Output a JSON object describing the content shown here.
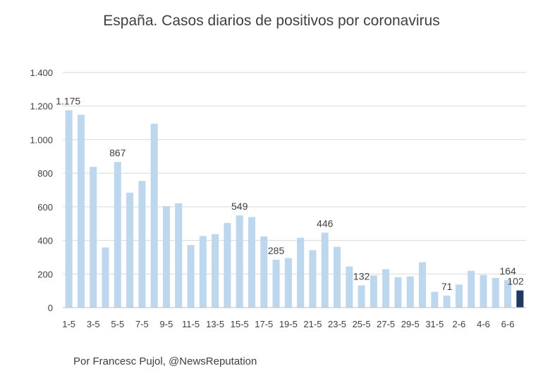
{
  "chart_data": {
    "type": "bar",
    "title": "España. Casos diarios de positivos por coronavirus",
    "xlabel": "",
    "ylabel": "",
    "ylim": [
      0,
      1400
    ],
    "yticks": [
      0,
      200,
      400,
      600,
      800,
      1000,
      1200,
      1400
    ],
    "ytick_labels": [
      "0",
      "200",
      "400",
      "600",
      "800",
      "1.000",
      "1.200",
      "1.400"
    ],
    "categories": [
      "1-5",
      "2-5",
      "3-5",
      "4-5",
      "5-5",
      "6-5",
      "7-5",
      "8-5",
      "9-5",
      "10-5",
      "11-5",
      "12-5",
      "13-5",
      "14-5",
      "15-5",
      "16-5",
      "17-5",
      "18-5",
      "19-5",
      "20-5",
      "21-5",
      "22-5",
      "23-5",
      "24-5",
      "25-5",
      "26-5",
      "27-5",
      "28-5",
      "29-5",
      "30-5",
      "31-5",
      "1-6",
      "2-6",
      "3-6",
      "4-6",
      "5-6",
      "6-6",
      "7-6"
    ],
    "visible_xtick_labels": [
      "1-5",
      "3-5",
      "5-5",
      "7-5",
      "9-5",
      "11-5",
      "13-5",
      "15-5",
      "17-5",
      "19-5",
      "21-5",
      "23-5",
      "25-5",
      "27-5",
      "29-5",
      "31-5",
      "2-6",
      "4-6",
      "6-6"
    ],
    "values": [
      1175,
      1148,
      838,
      358,
      867,
      684,
      754,
      1095,
      604,
      621,
      372,
      426,
      437,
      504,
      549,
      539,
      424,
      285,
      295,
      416,
      342,
      446,
      362,
      245,
      132,
      191,
      229,
      181,
      186,
      270,
      94,
      71,
      137,
      219,
      194,
      176,
      164,
      102
    ],
    "data_labels": [
      {
        "category": "1-5",
        "text": "1.175"
      },
      {
        "category": "5-5",
        "text": "867"
      },
      {
        "category": "15-5",
        "text": "549"
      },
      {
        "category": "18-5",
        "text": "285"
      },
      {
        "category": "22-5",
        "text": "446"
      },
      {
        "category": "25-5",
        "text": "132"
      },
      {
        "category": "1-6",
        "text": "71"
      },
      {
        "category": "6-6",
        "text": "164"
      },
      {
        "category": "7-6",
        "text": "102"
      }
    ],
    "grid": true,
    "legend": "none",
    "colors": {
      "bar": "#bdd7ee",
      "highlight": "#203864",
      "highlight_category": "7-6"
    }
  },
  "credit": "Por Francesc Pujol, @NewsReputation"
}
